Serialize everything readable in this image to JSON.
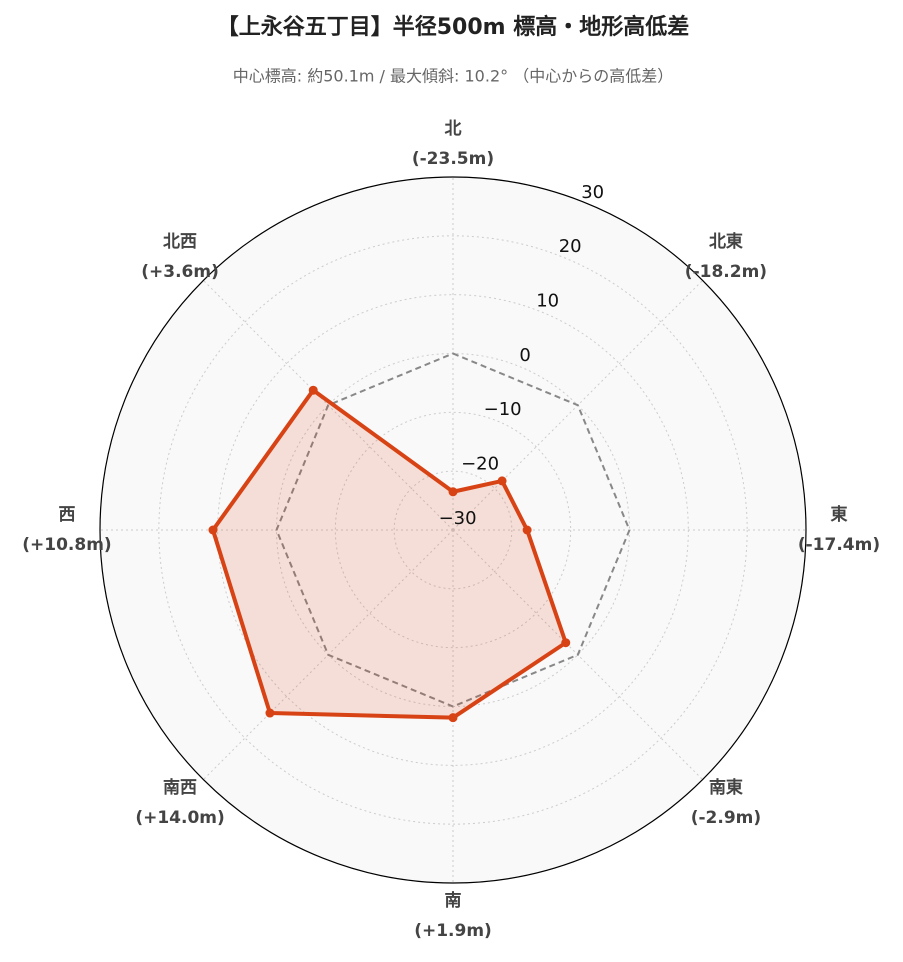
{
  "chart_data": {
    "type": "radar",
    "title": "【上永谷五丁目】半径500m 標高・地形高低差",
    "subtitle": "中心標高: 約50.1m / 最大傾斜: 10.2° （中心からの高低差）",
    "categories": [
      "北",
      "北東",
      "東",
      "南東",
      "南",
      "南西",
      "西",
      "北西"
    ],
    "values": [
      -23.5,
      -18.2,
      -17.4,
      -2.9,
      1.9,
      14.0,
      10.8,
      3.6
    ],
    "value_labels": [
      "(-23.5m)",
      "(-18.2m)",
      "(-17.4m)",
      "(-2.9m)",
      "(+1.9m)",
      "(+14.0m)",
      "(+10.8m)",
      "(+3.6m)"
    ],
    "color": "#d84315",
    "ylim": [
      -30,
      30
    ],
    "yticks": [
      {
        "value": -30,
        "label": "−30"
      },
      {
        "value": -20,
        "label": "−20"
      },
      {
        "value": -10,
        "label": "−10"
      },
      0,
      10,
      20,
      30
    ],
    "reference_line": {
      "value": 0,
      "color": "#888888",
      "style": "dashed"
    },
    "grid": true
  }
}
